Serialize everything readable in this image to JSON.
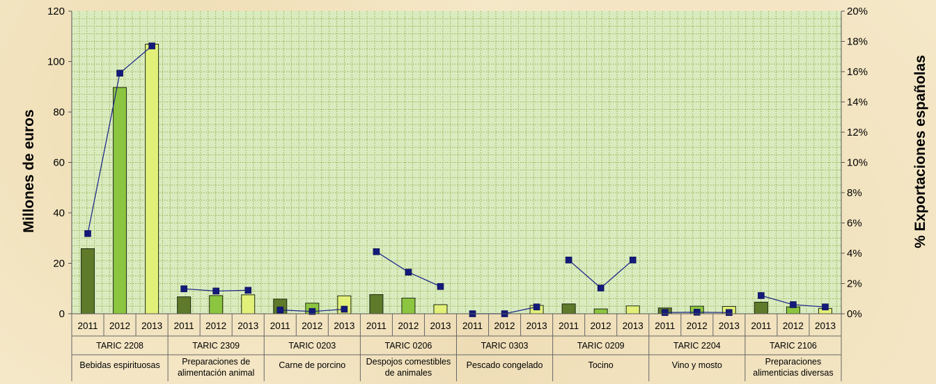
{
  "chart_data": {
    "type": "bar",
    "ylabel": "Millones de euros",
    "y2label": "% Exportaciones españolas",
    "ylim": [
      0,
      120
    ],
    "y2lim": [
      0,
      20
    ],
    "yticks": [
      "0",
      "20",
      "40",
      "60",
      "80",
      "100",
      "120"
    ],
    "y2ticks": [
      "0%",
      "2%",
      "4%",
      "6%",
      "8%",
      "10%",
      "12%",
      "14%",
      "16%",
      "18%",
      "20%"
    ],
    "years": [
      "2011",
      "2012",
      "2013"
    ],
    "grid": true,
    "colors": {
      "bar2011": "#5e7a2a",
      "bar2012": "#8cc540",
      "bar2013": "#e2f07a",
      "bar_edge": "#1e2a10",
      "line": "#1f2a8a",
      "marker": "#141a7a",
      "grid": "#9aa848",
      "plot_bg": "#d9ecc0"
    },
    "groups": [
      {
        "code": "TARIC 2208",
        "name": [
          "Bebidas espirituosas"
        ],
        "bars": [
          25.8,
          89.7,
          106.9
        ],
        "pct": [
          5.3,
          15.9,
          17.7
        ]
      },
      {
        "code": "TARIC 2309",
        "name": [
          "Preparaciones de",
          "alimentación animal"
        ],
        "bars": [
          6.7,
          7.2,
          7.5
        ],
        "pct": [
          1.65,
          1.5,
          1.55
        ]
      },
      {
        "code": "TARIC 0203",
        "name": [
          "Carne de porcino"
        ],
        "bars": [
          5.8,
          4.2,
          7.1
        ],
        "pct": [
          0.25,
          0.15,
          0.3
        ]
      },
      {
        "code": "TARIC 0206",
        "name": [
          "Despojos comestibles",
          "de animales"
        ],
        "bars": [
          7.6,
          6.2,
          3.6
        ],
        "pct": [
          4.1,
          2.75,
          1.8
        ]
      },
      {
        "code": "TARIC 0303",
        "name": [
          "Pescado congelado"
        ],
        "bars": [
          0,
          0,
          3.3
        ],
        "pct": [
          0,
          0,
          0.45
        ]
      },
      {
        "code": "TARIC 0209",
        "name": [
          "Tocino"
        ],
        "bars": [
          3.9,
          1.9,
          3.1
        ],
        "pct": [
          3.55,
          1.7,
          3.55
        ]
      },
      {
        "code": "TARIC 2204",
        "name": [
          "Vino y mosto"
        ],
        "bars": [
          2.3,
          3.0,
          2.9
        ],
        "pct": [
          0.08,
          0.1,
          0.08
        ]
      },
      {
        "code": "TARIC 2106",
        "name": [
          "Preparaciones",
          "alimenticias diversas"
        ],
        "bars": [
          4.6,
          2.7,
          2.1
        ],
        "pct": [
          1.2,
          0.6,
          0.45
        ]
      }
    ]
  }
}
